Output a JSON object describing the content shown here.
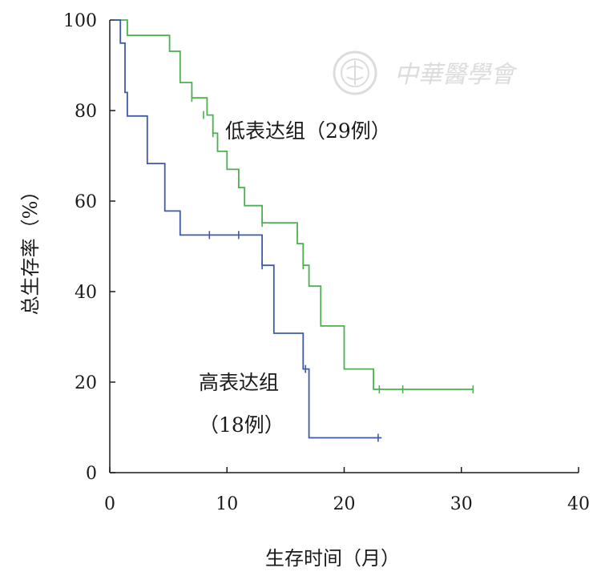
{
  "chart_data": {
    "type": "line",
    "step": true,
    "xlabel": "生存时间（月）",
    "ylabel": "总生存率（%）",
    "xlim": [
      0,
      40
    ],
    "ylim": [
      0,
      100
    ],
    "xticks": [
      0,
      10,
      20,
      30,
      40
    ],
    "yticks": [
      0,
      20,
      40,
      60,
      80,
      100
    ],
    "grid": false,
    "watermark": "中華醫學會",
    "series": [
      {
        "label": "低表达组（29例）",
        "color": "#4caf50",
        "points": [
          [
            0.4,
            100
          ],
          [
            1.5,
            100
          ],
          [
            1.5,
            96.6
          ],
          [
            5.1,
            96.6
          ],
          [
            5.1,
            93.1
          ],
          [
            6,
            93.1
          ],
          [
            6,
            86.2
          ],
          [
            7,
            86.2
          ],
          [
            7,
            82.8
          ],
          [
            8.3,
            82.8
          ],
          [
            8.3,
            79
          ],
          [
            8.8,
            79
          ],
          [
            8.8,
            75
          ],
          [
            9.2,
            75
          ],
          [
            9.2,
            71
          ],
          [
            10,
            71
          ],
          [
            10,
            67
          ],
          [
            11,
            67
          ],
          [
            11,
            63
          ],
          [
            11.5,
            63
          ],
          [
            11.5,
            59
          ],
          [
            13,
            59
          ],
          [
            13,
            55.2
          ],
          [
            16,
            55.2
          ],
          [
            16,
            50.6
          ],
          [
            16.5,
            50.6
          ],
          [
            16.5,
            45.8
          ],
          [
            17,
            45.8
          ],
          [
            17,
            41.2
          ],
          [
            18,
            41.2
          ],
          [
            18,
            32.4
          ],
          [
            20,
            32.4
          ],
          [
            20,
            22.9
          ],
          [
            22.5,
            22.9
          ],
          [
            22.5,
            18.4
          ],
          [
            31,
            18.4
          ]
        ],
        "censored": [
          [
            7,
            82.8
          ],
          [
            8,
            79
          ],
          [
            8.8,
            75
          ],
          [
            13,
            55.2
          ],
          [
            16.5,
            45.8
          ],
          [
            23,
            18.4
          ],
          [
            25,
            18.4
          ],
          [
            31,
            18.4
          ]
        ]
      },
      {
        "label": "高表达组（18例）",
        "color": "#3f5aa8",
        "points": [
          [
            0.4,
            100
          ],
          [
            0.9,
            100
          ],
          [
            0.9,
            94.9
          ],
          [
            1.3,
            94.9
          ],
          [
            1.3,
            84
          ],
          [
            1.5,
            84
          ],
          [
            1.5,
            78.8
          ],
          [
            3.2,
            78.8
          ],
          [
            3.2,
            68.3
          ],
          [
            4.7,
            68.3
          ],
          [
            4.7,
            57.8
          ],
          [
            6,
            57.8
          ],
          [
            6,
            52.5
          ],
          [
            13,
            52.5
          ],
          [
            13,
            45.8
          ],
          [
            14,
            45.8
          ],
          [
            14,
            30.8
          ],
          [
            16.5,
            30.8
          ],
          [
            16.5,
            22.9
          ],
          [
            17,
            22.9
          ],
          [
            17,
            7.7
          ],
          [
            23.2,
            7.7
          ]
        ],
        "censored": [
          [
            8.5,
            52.5
          ],
          [
            11,
            52.5
          ],
          [
            13,
            45.8
          ],
          [
            16.7,
            22.9
          ],
          [
            22.9,
            7.7
          ]
        ]
      }
    ],
    "labels": {
      "low_group": "低表达组（29例）",
      "high_group_line1": "高表达组",
      "high_group_line2": "（18例）"
    }
  }
}
